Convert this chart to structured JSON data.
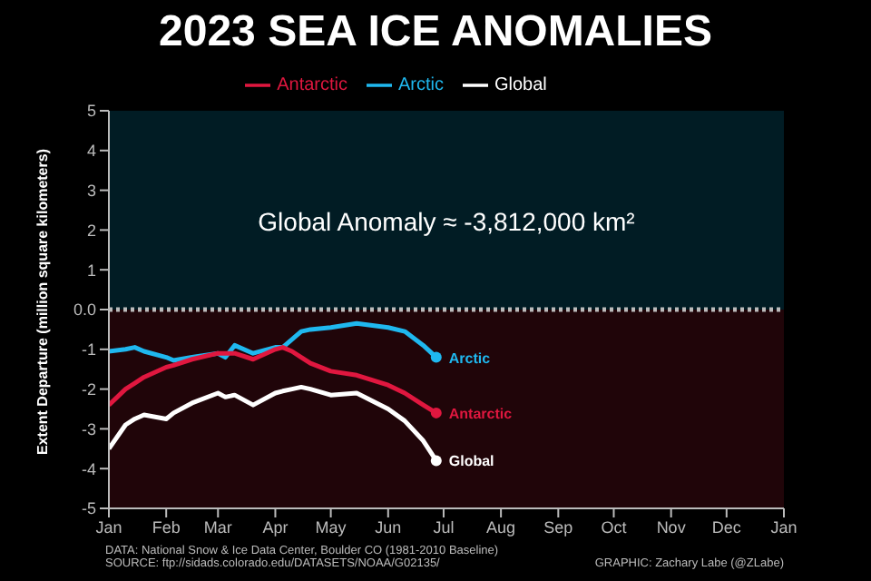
{
  "chart_data": {
    "type": "line",
    "title": "2023 SEA ICE ANOMALIES",
    "ylabel": "Extent Departure (million square kilometers)",
    "annotations": [
      "Global Anomaly ≈ -3,812,000 km²",
      "DATA: National Snow & Ice Data Center, Boulder CO (1981-2010 Baseline)",
      "SOURCE: ftp://sidads.colorado.edu/DATASETS/NOAA/G02135/",
      "GRAPHIC: Zachary Labe (@ZLabe)"
    ],
    "x": [
      "2023-01-01",
      "2023-01-10",
      "2023-01-15",
      "2023-01-20",
      "2023-02-01",
      "2023-02-05",
      "2023-02-15",
      "2023-03-01",
      "2023-03-05",
      "2023-03-10",
      "2023-03-20",
      "2023-04-01",
      "2023-04-05",
      "2023-04-10",
      "2023-04-15",
      "2023-04-20",
      "2023-05-01",
      "2023-05-15",
      "2023-06-01",
      "2023-06-10",
      "2023-06-20",
      "2023-06-27"
    ],
    "series": [
      {
        "name": "Arctic",
        "color": "#1fb8ef",
        "values": [
          -1.05,
          -1.0,
          -0.95,
          -1.05,
          -1.2,
          -1.28,
          -1.2,
          -1.1,
          -1.2,
          -0.9,
          -1.1,
          -0.95,
          -0.95,
          -0.75,
          -0.55,
          -0.5,
          -0.45,
          -0.35,
          -0.45,
          -0.55,
          -0.9,
          -1.2
        ]
      },
      {
        "name": "Antarctic",
        "color": "#e0173f",
        "values": [
          -2.4,
          -2.0,
          -1.85,
          -1.7,
          -1.45,
          -1.4,
          -1.25,
          -1.1,
          -1.1,
          -1.1,
          -1.25,
          -1.0,
          -0.95,
          -1.05,
          -1.2,
          -1.35,
          -1.55,
          -1.65,
          -1.9,
          -2.1,
          -2.4,
          -2.6
        ]
      },
      {
        "name": "Global",
        "color": "#ffffff",
        "values": [
          -3.5,
          -2.9,
          -2.75,
          -2.65,
          -2.75,
          -2.6,
          -2.35,
          -2.1,
          -2.2,
          -2.15,
          -2.4,
          -2.1,
          -2.05,
          -2.0,
          -1.95,
          -2.0,
          -2.15,
          -2.1,
          -2.5,
          -2.8,
          -3.3,
          -3.8
        ]
      }
    ],
    "xlim": [
      "2023-01-01",
      "2024-01-01"
    ],
    "xticks": [
      {
        "value": "2023-01-01",
        "label": "Jan"
      },
      {
        "value": "2023-02-01",
        "label": "Feb"
      },
      {
        "value": "2023-03-01",
        "label": "Mar"
      },
      {
        "value": "2023-04-01",
        "label": "Apr"
      },
      {
        "value": "2023-05-01",
        "label": "May"
      },
      {
        "value": "2023-06-01",
        "label": "Jun"
      },
      {
        "value": "2023-07-01",
        "label": "Jul"
      },
      {
        "value": "2023-08-01",
        "label": "Aug"
      },
      {
        "value": "2023-09-01",
        "label": "Sep"
      },
      {
        "value": "2023-10-01",
        "label": "Oct"
      },
      {
        "value": "2023-11-01",
        "label": "Nov"
      },
      {
        "value": "2023-12-01",
        "label": "Dec"
      },
      {
        "value": "2024-01-01",
        "label": "Jan"
      }
    ],
    "ylim": [
      -5,
      5
    ],
    "yticks": [
      -5,
      -4,
      -3,
      -2,
      -1,
      {
        "value": 0,
        "label": "0.0"
      },
      1,
      2,
      3,
      4,
      5
    ],
    "bands": [
      {
        "axis": "y",
        "from": 0,
        "to": 5,
        "color": "#011c24"
      },
      {
        "axis": "y",
        "from": -5,
        "to": 0,
        "color": "#200509"
      }
    ],
    "ref_lines": [
      {
        "axis": "y",
        "value": 0,
        "color": "#bbbbbb",
        "line_style": "dotted"
      }
    ],
    "legend": "top",
    "grid": false,
    "marker": "none",
    "line_style": "solid"
  }
}
